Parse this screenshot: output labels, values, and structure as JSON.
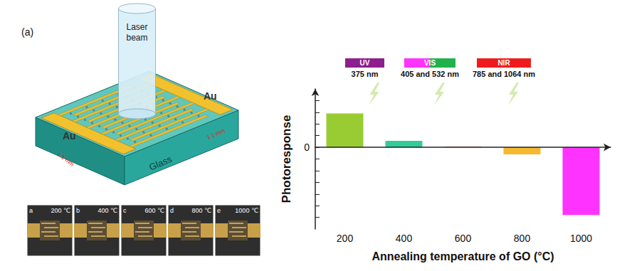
{
  "panel_label": "(a)",
  "schematic": {
    "beam_label": "Laser beam",
    "electrode_labels": [
      "Au",
      "Au"
    ],
    "substrate_label": "Glass",
    "dimension_labels": [
      "1.1 mm",
      "1.1 mm"
    ]
  },
  "photos": [
    {
      "letter": "a",
      "temperature": "200 ℃"
    },
    {
      "letter": "b",
      "temperature": "400 ℃"
    },
    {
      "letter": "c",
      "temperature": "600 ℃"
    },
    {
      "letter": "d",
      "temperature": "800 ℃"
    },
    {
      "letter": "e",
      "temperature": "1000 ℃"
    }
  ],
  "wavelength_bands": [
    {
      "name": "UV",
      "wavelength": "375 nm",
      "colors": [
        "#8e1e8e"
      ]
    },
    {
      "name": "VIS",
      "wavelength": "405 and 532 nm",
      "colors": [
        "#ff33ff",
        "#22b24c"
      ]
    },
    {
      "name": "NIR",
      "wavelength": "785 and 1064 nm",
      "colors": [
        "#ee1c1c"
      ]
    }
  ],
  "chart_data": {
    "type": "bar",
    "categories": [
      "200",
      "400",
      "600",
      "800",
      "1000"
    ],
    "values": [
      2.9,
      0.55,
      0.05,
      -0.6,
      -5.8
    ],
    "colors": [
      "#99cc33",
      "#33cc99",
      "#ff3333",
      "#f5b82e",
      "#ff33ff"
    ],
    "x_label": "Annealing temperature of GO (°C)",
    "y_label": "Photoresponse",
    "ylim": [
      -7,
      5
    ],
    "yticks": [
      {
        "value": -6,
        "label": null
      },
      {
        "value": -5,
        "label": null
      },
      {
        "value": -4,
        "label": null
      },
      {
        "value": -3,
        "label": null
      },
      {
        "value": -2,
        "label": null
      },
      {
        "value": -1,
        "label": null
      },
      0,
      {
        "value": 1,
        "label": null
      },
      {
        "value": 2,
        "label": null
      },
      {
        "value": 3,
        "label": null
      },
      {
        "value": 4,
        "label": null
      }
    ],
    "grid": false
  }
}
